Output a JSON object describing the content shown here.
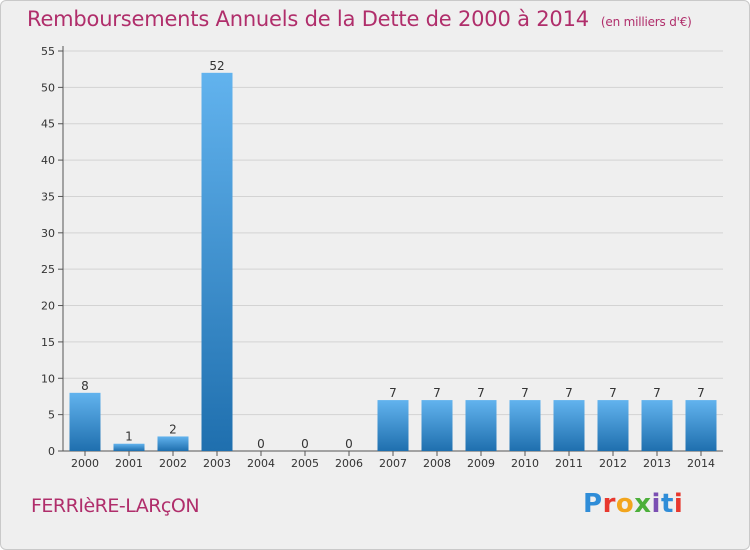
{
  "title": "Remboursements Annuels de la Dette de 2000 à 2014",
  "unit": "(en milliers d'€)",
  "commune": "FERRIèRE-LARçON",
  "logo": {
    "text": "Proxiti",
    "colors": [
      "#2f8dd8",
      "#e8382e",
      "#f2a51d",
      "#4caf3a",
      "#7b4fb3",
      "#2f8dd8",
      "#e8382e"
    ]
  },
  "colors": {
    "title": "#b02e6b",
    "bar_top": "#62b3ee",
    "bar_bottom": "#1f6fae",
    "background": "#efefef"
  },
  "chart_data": {
    "type": "bar",
    "categories": [
      "2000",
      "2001",
      "2002",
      "2003",
      "2004",
      "2005",
      "2006",
      "2007",
      "2008",
      "2009",
      "2010",
      "2011",
      "2012",
      "2013",
      "2014"
    ],
    "values": [
      8,
      1,
      2,
      52,
      0,
      0,
      0,
      7,
      7,
      7,
      7,
      7,
      7,
      7,
      7
    ],
    "ylim": [
      0,
      55
    ],
    "yticks": [
      0,
      5,
      10,
      15,
      20,
      25,
      30,
      35,
      40,
      45,
      50,
      55
    ],
    "grid": true
  }
}
